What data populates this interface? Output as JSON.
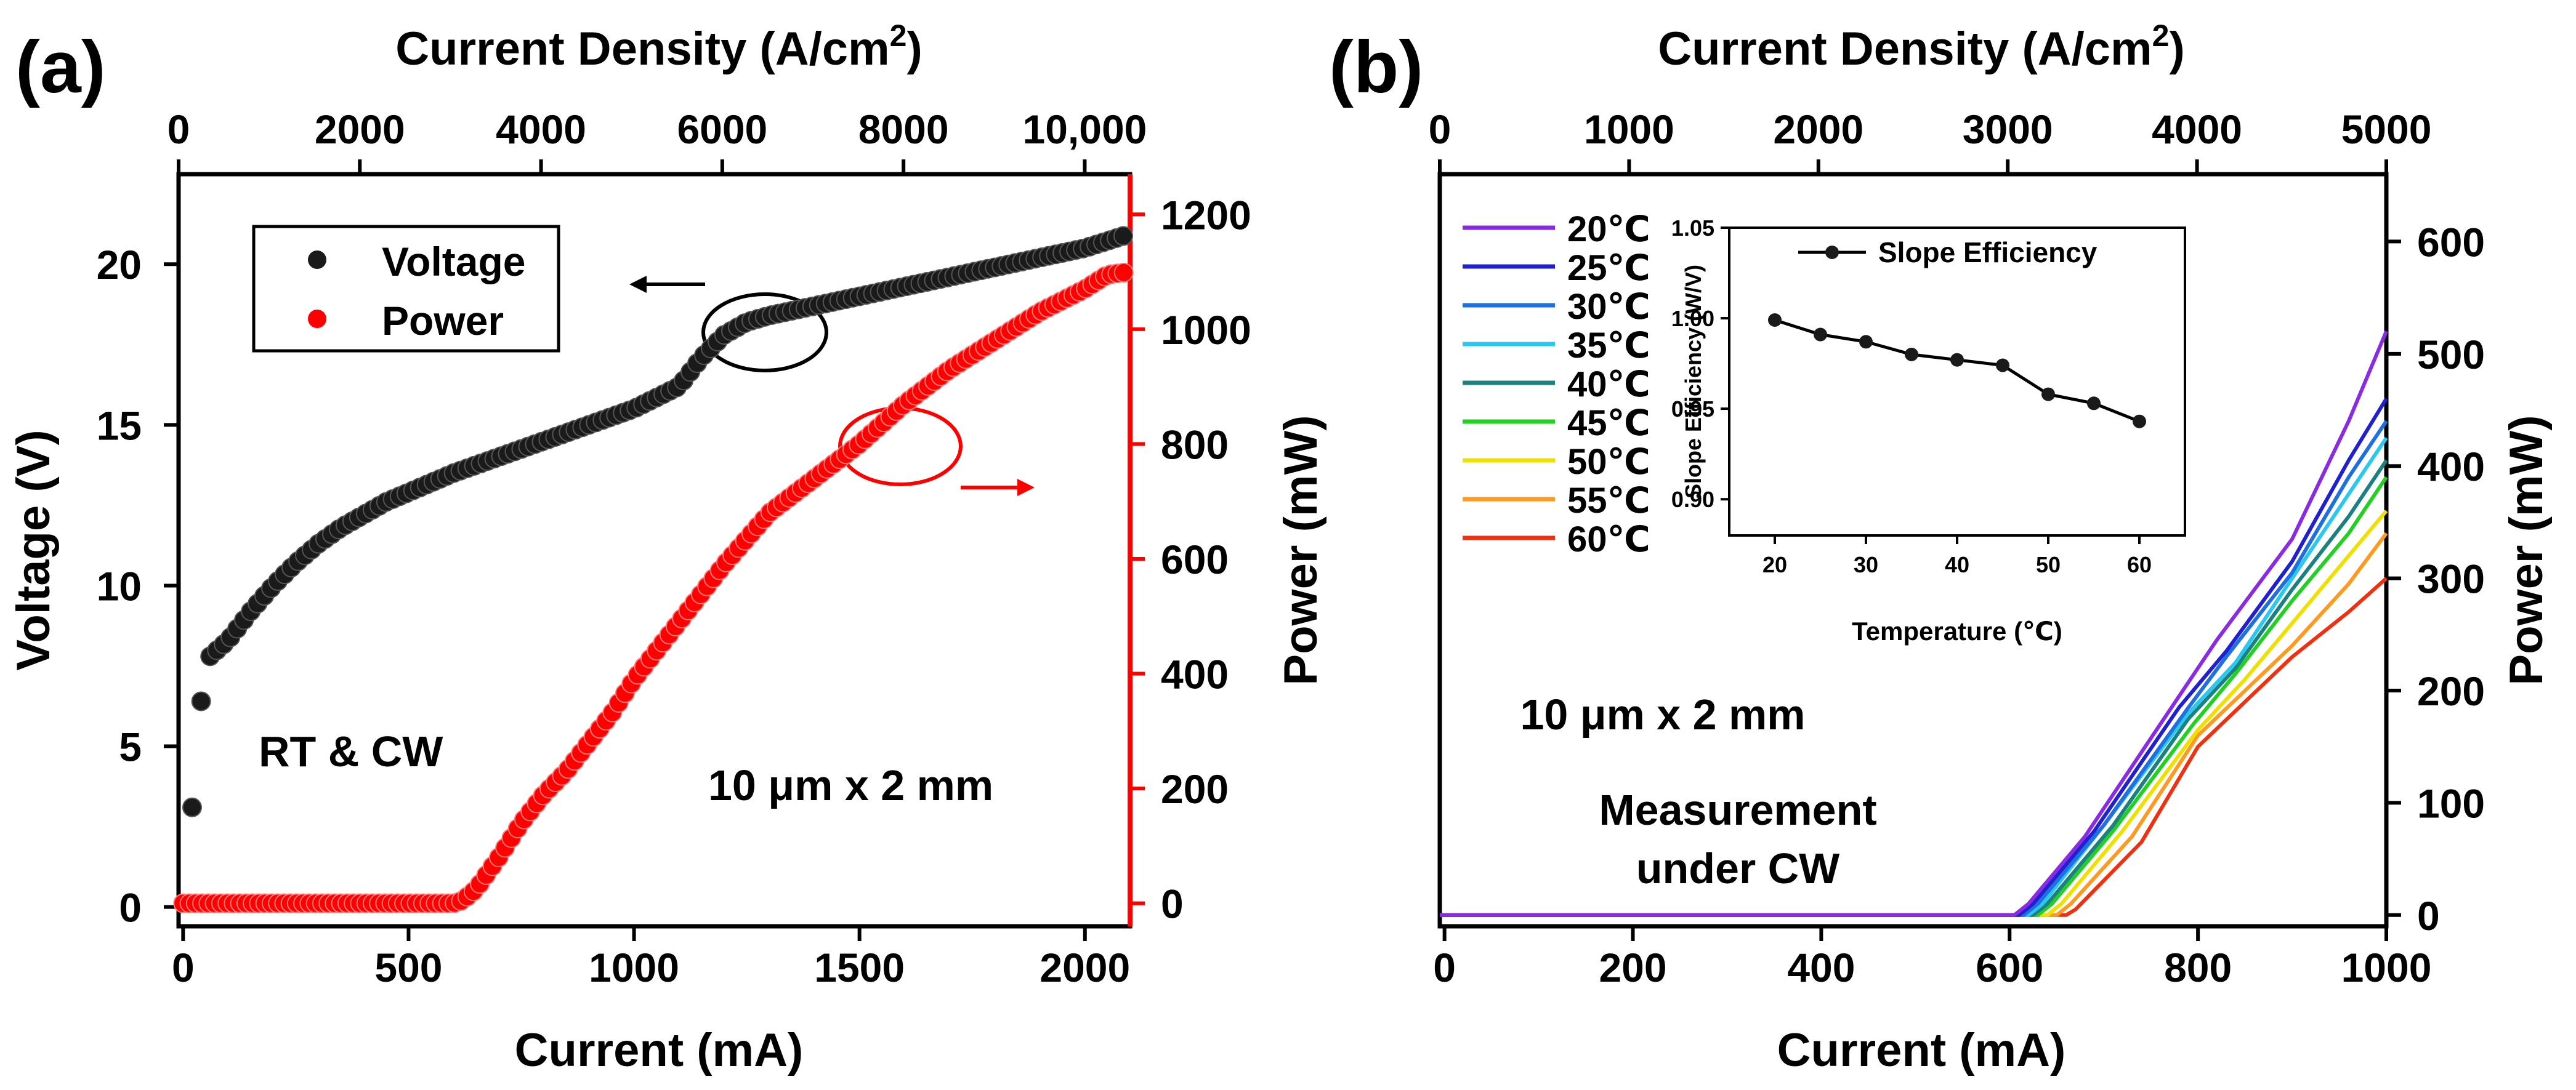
{
  "colors": {
    "voltage": "#1a1a1a",
    "power": "#ff0000",
    "axis": "#000000",
    "temps": [
      "#8a2be2",
      "#2020d0",
      "#1e6fe0",
      "#28c8f0",
      "#1a8080",
      "#22d022",
      "#f0e000",
      "#ff9a20",
      "#f03010"
    ]
  },
  "chart_data": [
    {
      "type": "scatter",
      "panel_label": "(a)",
      "top_axis": {
        "label_main": "Current Density (A/cm",
        "label_sup": "2",
        "label_end": ")",
        "ticks": [
          "0",
          "2000",
          "4000",
          "6000",
          "8000",
          "10,000"
        ],
        "tick_values": [
          0,
          2000,
          4000,
          6000,
          8000,
          10000
        ],
        "range": [
          0,
          10500
        ]
      },
      "xlabel": "Current (mA)",
      "xlim": [
        -10,
        2100
      ],
      "xticks": [
        0,
        500,
        1000,
        1500,
        2000
      ],
      "ylabel_left": "Voltage (V)",
      "ylim_left": [
        -0.6,
        22.8
      ],
      "yticks_left": [
        0,
        5,
        10,
        15,
        20
      ],
      "ylabel_right": "Power (mW)",
      "ylim_right": [
        -40,
        1270
      ],
      "yticks_right": [
        0,
        200,
        400,
        600,
        800,
        1000,
        1200
      ],
      "legend": {
        "position": "top-left",
        "entries": [
          "Voltage",
          "Power"
        ]
      },
      "annotations": [
        "RT & CW",
        "10 μm x 2 mm"
      ],
      "series": [
        {
          "name": "Voltage",
          "axis": "left",
          "x": [
            20,
            40,
            60,
            100,
            150,
            200,
            250,
            300,
            350,
            400,
            450,
            500,
            550,
            600,
            700,
            800,
            900,
            1000,
            1100,
            1150,
            1200,
            1250,
            1300,
            1400,
            1500,
            1600,
            1700,
            1800,
            1900,
            2000,
            2090
          ],
          "y": [
            3.1,
            6.4,
            7.8,
            8.3,
            9.2,
            10.0,
            10.7,
            11.3,
            11.8,
            12.2,
            12.6,
            12.9,
            13.2,
            13.5,
            14.0,
            14.5,
            15.0,
            15.5,
            16.2,
            17.1,
            17.8,
            18.2,
            18.4,
            18.7,
            19.0,
            19.3,
            19.6,
            19.9,
            20.2,
            20.5,
            20.9
          ]
        },
        {
          "name": "Power",
          "axis": "right",
          "x": [
            0,
            100,
            200,
            300,
            400,
            500,
            600,
            620,
            650,
            700,
            750,
            800,
            850,
            900,
            950,
            1000,
            1100,
            1200,
            1300,
            1400,
            1500,
            1600,
            1700,
            1800,
            1900,
            2000,
            2050,
            2100
          ],
          "y": [
            0,
            0,
            0,
            0,
            0,
            0,
            0,
            5,
            25,
            80,
            140,
            190,
            230,
            280,
            330,
            390,
            490,
            590,
            680,
            740,
            800,
            870,
            930,
            980,
            1030,
            1070,
            1095,
            1100
          ]
        }
      ]
    },
    {
      "type": "line",
      "panel_label": "(b)",
      "top_axis": {
        "label_main": "Current Density (A/cm",
        "label_sup": "2",
        "label_end": ")",
        "ticks": [
          "0",
          "1000",
          "2000",
          "3000",
          "4000",
          "5000"
        ],
        "tick_values": [
          0,
          1000,
          2000,
          3000,
          4000,
          5000
        ],
        "range": [
          0,
          5000
        ]
      },
      "xlabel": "Current (mA)",
      "xlim": [
        -5,
        1000
      ],
      "xticks": [
        0,
        200,
        400,
        600,
        800,
        1000
      ],
      "ylabel": "Power (mW)",
      "ylim": [
        -10,
        660
      ],
      "yticks": [
        0,
        100,
        200,
        300,
        400,
        500,
        600
      ],
      "legend": {
        "position": "top-left",
        "entries": [
          "20℃",
          "25℃",
          "30℃",
          "35℃",
          "40℃",
          "45℃",
          "50℃",
          "55℃",
          "60℃"
        ]
      },
      "annotations": [
        "10 μm x 2 mm",
        "Measurement",
        "under CW"
      ],
      "series": [
        {
          "name": "20℃",
          "x": [
            -5,
            605,
            620,
            680,
            780,
            820,
            900,
            960,
            1000
          ],
          "y": [
            0,
            0,
            10,
            70,
            195,
            245,
            335,
            440,
            520
          ]
        },
        {
          "name": "25℃",
          "x": [
            -5,
            610,
            625,
            690,
            780,
            830,
            900,
            960,
            1000
          ],
          "y": [
            0,
            0,
            10,
            75,
            185,
            235,
            315,
            405,
            460
          ]
        },
        {
          "name": "30℃",
          "x": [
            -5,
            615,
            630,
            700,
            790,
            830,
            900,
            960,
            1000
          ],
          "y": [
            0,
            0,
            10,
            80,
            185,
            230,
            305,
            390,
            440
          ]
        },
        {
          "name": "35℃",
          "x": [
            -5,
            620,
            635,
            700,
            790,
            840,
            900,
            960,
            1000
          ],
          "y": [
            0,
            0,
            10,
            80,
            180,
            225,
            300,
            375,
            425
          ]
        },
        {
          "name": "40℃",
          "x": [
            -5,
            625,
            640,
            710,
            790,
            840,
            900,
            960,
            1000
          ],
          "y": [
            0,
            0,
            10,
            80,
            175,
            220,
            290,
            355,
            405
          ]
        },
        {
          "name": "45℃",
          "x": [
            -5,
            630,
            645,
            710,
            795,
            840,
            900,
            960,
            1000
          ],
          "y": [
            0,
            0,
            10,
            75,
            170,
            215,
            280,
            340,
            390
          ]
        },
        {
          "name": "50℃",
          "x": [
            -5,
            640,
            655,
            720,
            800,
            850,
            900,
            960,
            1000
          ],
          "y": [
            0,
            0,
            10,
            75,
            165,
            210,
            260,
            320,
            360
          ]
        },
        {
          "name": "55℃",
          "x": [
            -5,
            650,
            665,
            730,
            800,
            850,
            900,
            960,
            1000
          ],
          "y": [
            0,
            0,
            10,
            70,
            160,
            200,
            240,
            295,
            340
          ]
        },
        {
          "name": "60℃",
          "x": [
            -5,
            660,
            670,
            740,
            800,
            850,
            900,
            960,
            1000
          ],
          "y": [
            0,
            0,
            5,
            65,
            150,
            190,
            230,
            270,
            300
          ]
        }
      ]
    },
    {
      "type": "line",
      "panel_label": "inset",
      "title": "Slope Efficiency",
      "xlabel": "Temperature (℃)",
      "ylabel": "Slope Efficiency (W/V)",
      "xlim": [
        15,
        65
      ],
      "xticks": [
        20,
        30,
        40,
        50,
        60
      ],
      "ylim": [
        0.88,
        1.05
      ],
      "yticks": [
        0.9,
        0.95,
        1.0,
        1.05
      ],
      "series": [
        {
          "name": "Slope Efficiency",
          "x": [
            20,
            25,
            30,
            35,
            40,
            45,
            50,
            55,
            60
          ],
          "y": [
            0.999,
            0.991,
            0.987,
            0.98,
            0.977,
            0.974,
            0.958,
            0.953,
            0.943
          ]
        }
      ]
    }
  ]
}
